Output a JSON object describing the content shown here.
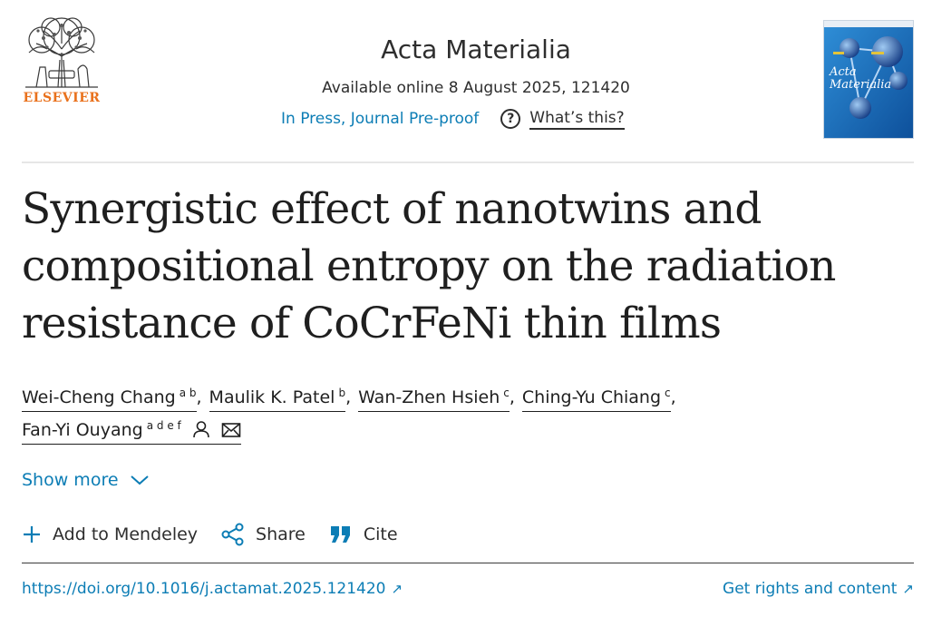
{
  "publisher": {
    "name": "ELSEVIER",
    "logo_icon": "elsevier-tree-icon"
  },
  "journal": {
    "name": "Acta Materialia",
    "available_online": "Available online 8 August 2025, 121420",
    "status": "In Press, Journal Pre-proof",
    "help_label": "What’s this?",
    "cover_title": "Acta Materialia"
  },
  "article": {
    "title": "Synergistic effect of nanotwins and compositional entropy on the radiation resistance of CoCrFeNi thin films",
    "authors": [
      {
        "name": "Wei-Cheng Chang",
        "affiliations": "a b"
      },
      {
        "name": "Maulik K. Patel",
        "affiliations": "b"
      },
      {
        "name": "Wan-Zhen Hsieh",
        "affiliations": "c"
      },
      {
        "name": "Ching-Yu Chiang",
        "affiliations": "c"
      },
      {
        "name": "Fan-Yi Ouyang",
        "affiliations": "a d e f"
      }
    ],
    "separator": ","
  },
  "show_more": {
    "label": "Show more"
  },
  "actions": {
    "mendeley": "Add to Mendeley",
    "share": "Share",
    "cite": "Cite"
  },
  "links": {
    "doi": "https://doi.org/10.1016/j.actamat.2025.121420",
    "rights": "Get rights and content",
    "external_glyph": "↗"
  },
  "colors": {
    "link": "#0c7db5",
    "publisher": "#e9711c",
    "text": "#1f1f1f"
  }
}
